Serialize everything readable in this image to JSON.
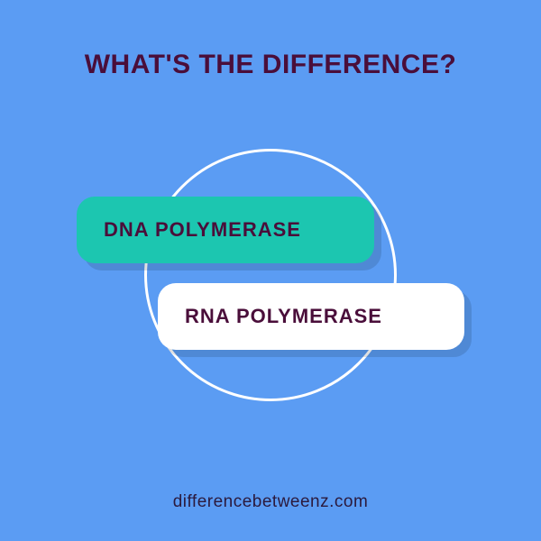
{
  "colors": {
    "background": "#5b9cf3",
    "title_text": "#4a0e3a",
    "card_top_bg": "#1cc6b0",
    "card_top_text": "#4a0e3a",
    "card_bottom_bg": "#ffffff",
    "card_bottom_text": "#4a0e3a",
    "circle_stroke": "#ffffff",
    "footer_text": "#2b1a3d"
  },
  "title": "WHAT'S THE DIFFERENCE?",
  "card_top": "DNA POLYMERASE",
  "card_bottom": "RNA POLYMERASE",
  "footer": "differencebetweenz.com"
}
